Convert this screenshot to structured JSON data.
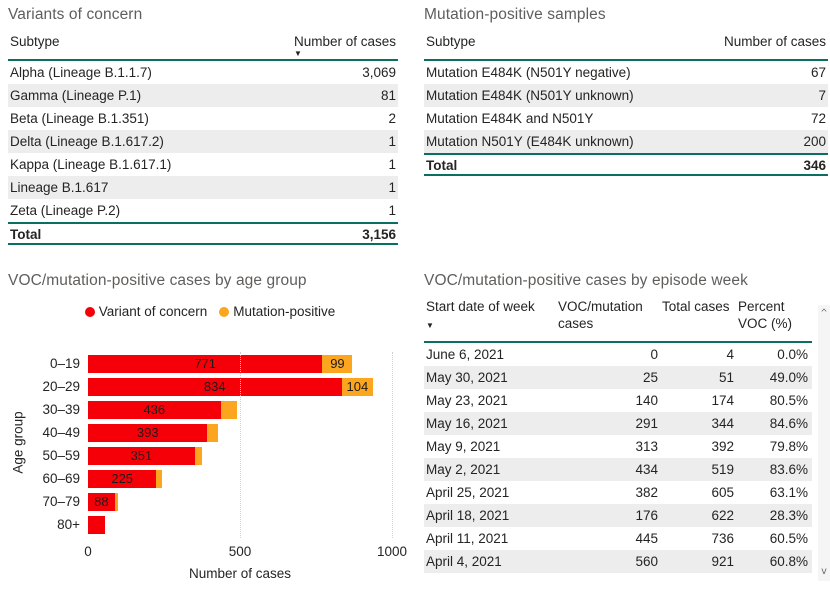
{
  "colors": {
    "accent_teal": "#0a6e62",
    "voc_red": "#f50008",
    "mutation_orange": "#fca61f",
    "row_stripe": "#ededed",
    "title_gray": "#605e5c",
    "text_dark": "#252423"
  },
  "icons": {
    "sort_desc": "▼",
    "scroll_up": "^",
    "scroll_down": "v"
  },
  "chart_data": [
    {
      "type": "table",
      "title": "Variants of concern",
      "columns": [
        "Subtype",
        "Number of cases"
      ],
      "sorted_by": "Number of cases",
      "sort_direction": "descending",
      "rows": [
        [
          "Alpha (Lineage B.1.1.7)",
          "3,069"
        ],
        [
          "Gamma (Lineage P.1)",
          "81"
        ],
        [
          "Beta (Lineage B.1.351)",
          "2"
        ],
        [
          "Delta (Lineage B.1.617.2)",
          "1"
        ],
        [
          "Kappa (Lineage B.1.617.1)",
          "1"
        ],
        [
          "Lineage B.1.617",
          "1"
        ],
        [
          "Zeta (Lineage P.2)",
          "1"
        ]
      ],
      "total_row": [
        "Total",
        "3,156"
      ]
    },
    {
      "type": "table",
      "title": "Mutation-positive samples",
      "columns": [
        "Subtype",
        "Number of cases"
      ],
      "rows": [
        [
          "Mutation E484K (N501Y negative)",
          "67"
        ],
        [
          "Mutation E484K (N501Y unknown)",
          "7"
        ],
        [
          "Mutation E484K and N501Y",
          "72"
        ],
        [
          "Mutation N501Y (E484K unknown)",
          "200"
        ]
      ],
      "total_row": [
        "Total",
        "346"
      ]
    },
    {
      "type": "bar",
      "title": "VOC/mutation-positive cases by age group",
      "orientation": "horizontal",
      "stacked": true,
      "categories": [
        "0–19",
        "20–29",
        "30–39",
        "40–49",
        "50–59",
        "60–69",
        "70–79",
        "80+"
      ],
      "series": [
        {
          "name": "Variant of concern",
          "color": "#f50008",
          "values": [
            771,
            834,
            436,
            393,
            351,
            225,
            88,
            55
          ],
          "data_labels": [
            "771",
            "834",
            "436",
            "393",
            "351",
            "225",
            "88",
            ""
          ]
        },
        {
          "name": "Mutation-positive",
          "color": "#fca61f",
          "values": [
            99,
            104,
            55,
            35,
            25,
            20,
            10,
            0
          ],
          "data_labels": [
            "99",
            "104",
            "",
            "",
            "",
            "",
            "",
            ""
          ]
        }
      ],
      "xlabel": "Number of cases",
      "ylabel": "Age group",
      "xlim": [
        0,
        1000
      ],
      "xticks": [
        "0",
        "500",
        "1000"
      ],
      "legend_position": "top",
      "gridlines": "vertical-dotted"
    },
    {
      "type": "table",
      "title": "VOC/mutation-positive cases by episode week",
      "columns": [
        "Start date of week",
        "VOC/mutation cases",
        "Total cases",
        "Percent VOC (%)"
      ],
      "sorted_by": "Start date of week",
      "sort_direction": "descending",
      "rows": [
        [
          "June 6, 2021",
          "0",
          "4",
          "0.0%"
        ],
        [
          "May 30, 2021",
          "25",
          "51",
          "49.0%"
        ],
        [
          "May 23, 2021",
          "140",
          "174",
          "80.5%"
        ],
        [
          "May 16, 2021",
          "291",
          "344",
          "84.6%"
        ],
        [
          "May 9, 2021",
          "313",
          "392",
          "79.8%"
        ],
        [
          "May 2, 2021",
          "434",
          "519",
          "83.6%"
        ],
        [
          "April 25, 2021",
          "382",
          "605",
          "63.1%"
        ],
        [
          "April 18, 2021",
          "176",
          "622",
          "28.3%"
        ],
        [
          "April 11, 2021",
          "445",
          "736",
          "60.5%"
        ],
        [
          "April 4, 2021",
          "560",
          "921",
          "60.8%"
        ]
      ],
      "has_scrollbar": true
    }
  ]
}
